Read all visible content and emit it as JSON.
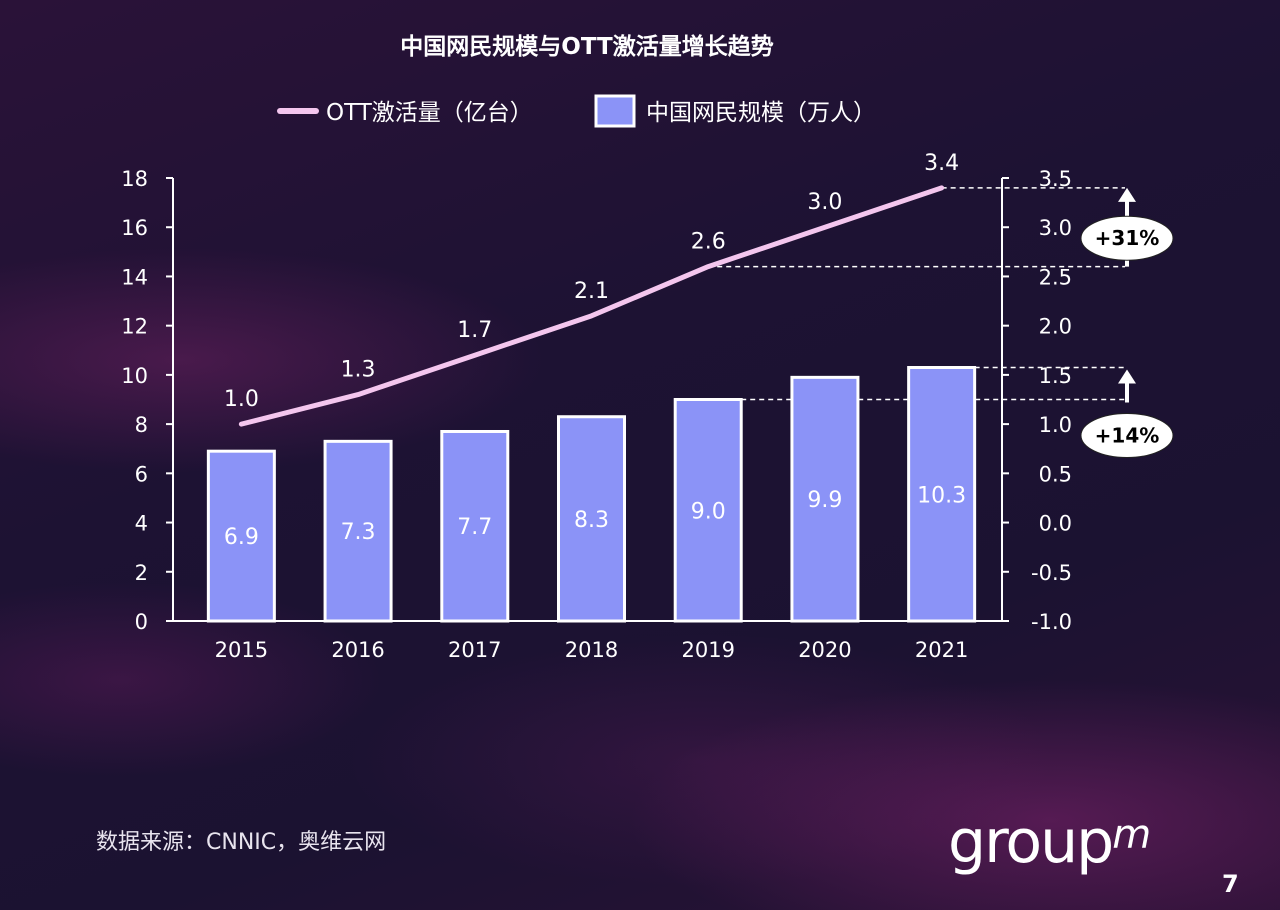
{
  "chart_data": {
    "type": "bar",
    "title": "中国网民规模与OTT激活量增长趋势",
    "categories": [
      "2015",
      "2016",
      "2017",
      "2018",
      "2019",
      "2020",
      "2021"
    ],
    "series": [
      {
        "name": "中国网民规模（万人）",
        "type": "bar",
        "axis": "left",
        "values": [
          6.9,
          7.3,
          7.7,
          8.3,
          9.0,
          9.9,
          10.3
        ],
        "color": "#8b93f7"
      },
      {
        "name": "OTT激活量（亿台）",
        "type": "line",
        "axis": "right",
        "values": [
          1.0,
          1.3,
          1.7,
          2.1,
          2.6,
          3.0,
          3.4
        ],
        "color": "#f4c6ee"
      }
    ],
    "ylim_left": [
      0,
      18
    ],
    "yticks_left": [
      "0",
      "2",
      "4",
      "6",
      "8",
      "10",
      "12",
      "14",
      "16",
      "18"
    ],
    "ylim_right": [
      -1.0,
      3.5
    ],
    "yticks_right": [
      "-1.0",
      "-0.5",
      "0.0",
      "0.5",
      "1.0",
      "1.5",
      "2.0",
      "2.5",
      "3.0",
      "3.5"
    ],
    "bar_labels": [
      "6.9",
      "7.3",
      "7.7",
      "8.3",
      "9.0",
      "9.9",
      "10.3"
    ],
    "line_labels": [
      "1.0",
      "1.3",
      "1.7",
      "2.1",
      "2.6",
      "3.0",
      "3.4"
    ],
    "annotations": [
      {
        "text": "+31%",
        "from": 2.6,
        "to": 3.4,
        "axis": "right"
      },
      {
        "text": "+14%",
        "from": 9.0,
        "to": 10.3,
        "axis": "left"
      }
    ],
    "legend_position": "top",
    "grid": false
  },
  "source": "数据来源：CNNIC，奥维云网",
  "logo": {
    "main": "group",
    "sup": "m"
  },
  "page_number": "7"
}
